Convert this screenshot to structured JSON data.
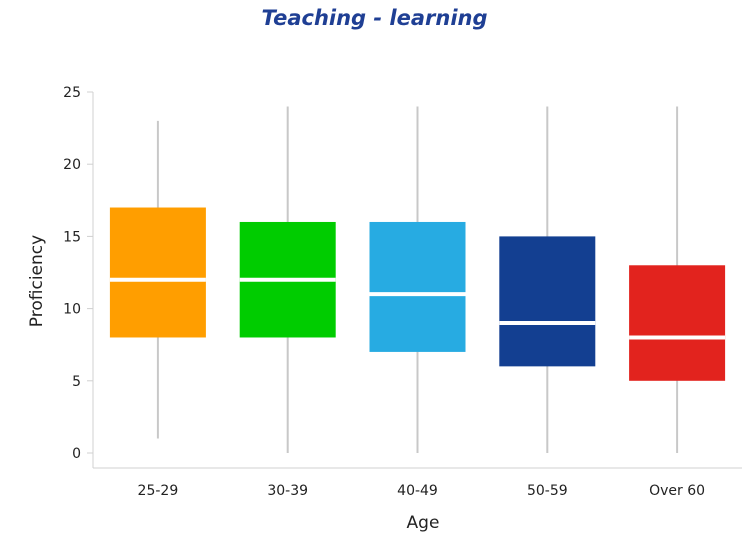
{
  "chart_data": {
    "type": "box",
    "title": "Teaching - learning",
    "xlabel": "Age",
    "ylabel": "Proficiency",
    "ylim": [
      0,
      25
    ],
    "yticks": [
      0,
      5,
      10,
      15,
      20,
      25
    ],
    "categories": [
      "25-29",
      "30-39",
      "40-49",
      "50-59",
      "Over 60"
    ],
    "colors": [
      "#ff9e00",
      "#00cc00",
      "#27abe2",
      "#133f91",
      "#e2231e"
    ],
    "whisker_color": "#c8c8c8",
    "median_color": "#ffffff",
    "grid": false,
    "legend": "none",
    "boxes": [
      {
        "category": "25-29",
        "min": 1,
        "q1": 8,
        "median": 12,
        "q3": 17,
        "max": 23
      },
      {
        "category": "30-39",
        "min": 0,
        "q1": 8,
        "median": 12,
        "q3": 16,
        "max": 24
      },
      {
        "category": "40-49",
        "min": 0,
        "q1": 7,
        "median": 11,
        "q3": 16,
        "max": 24
      },
      {
        "category": "50-59",
        "min": 0,
        "q1": 6,
        "median": 9,
        "q3": 15,
        "max": 24
      },
      {
        "category": "Over 60",
        "min": 0,
        "q1": 5,
        "median": 8,
        "q3": 13,
        "max": 24
      }
    ]
  }
}
